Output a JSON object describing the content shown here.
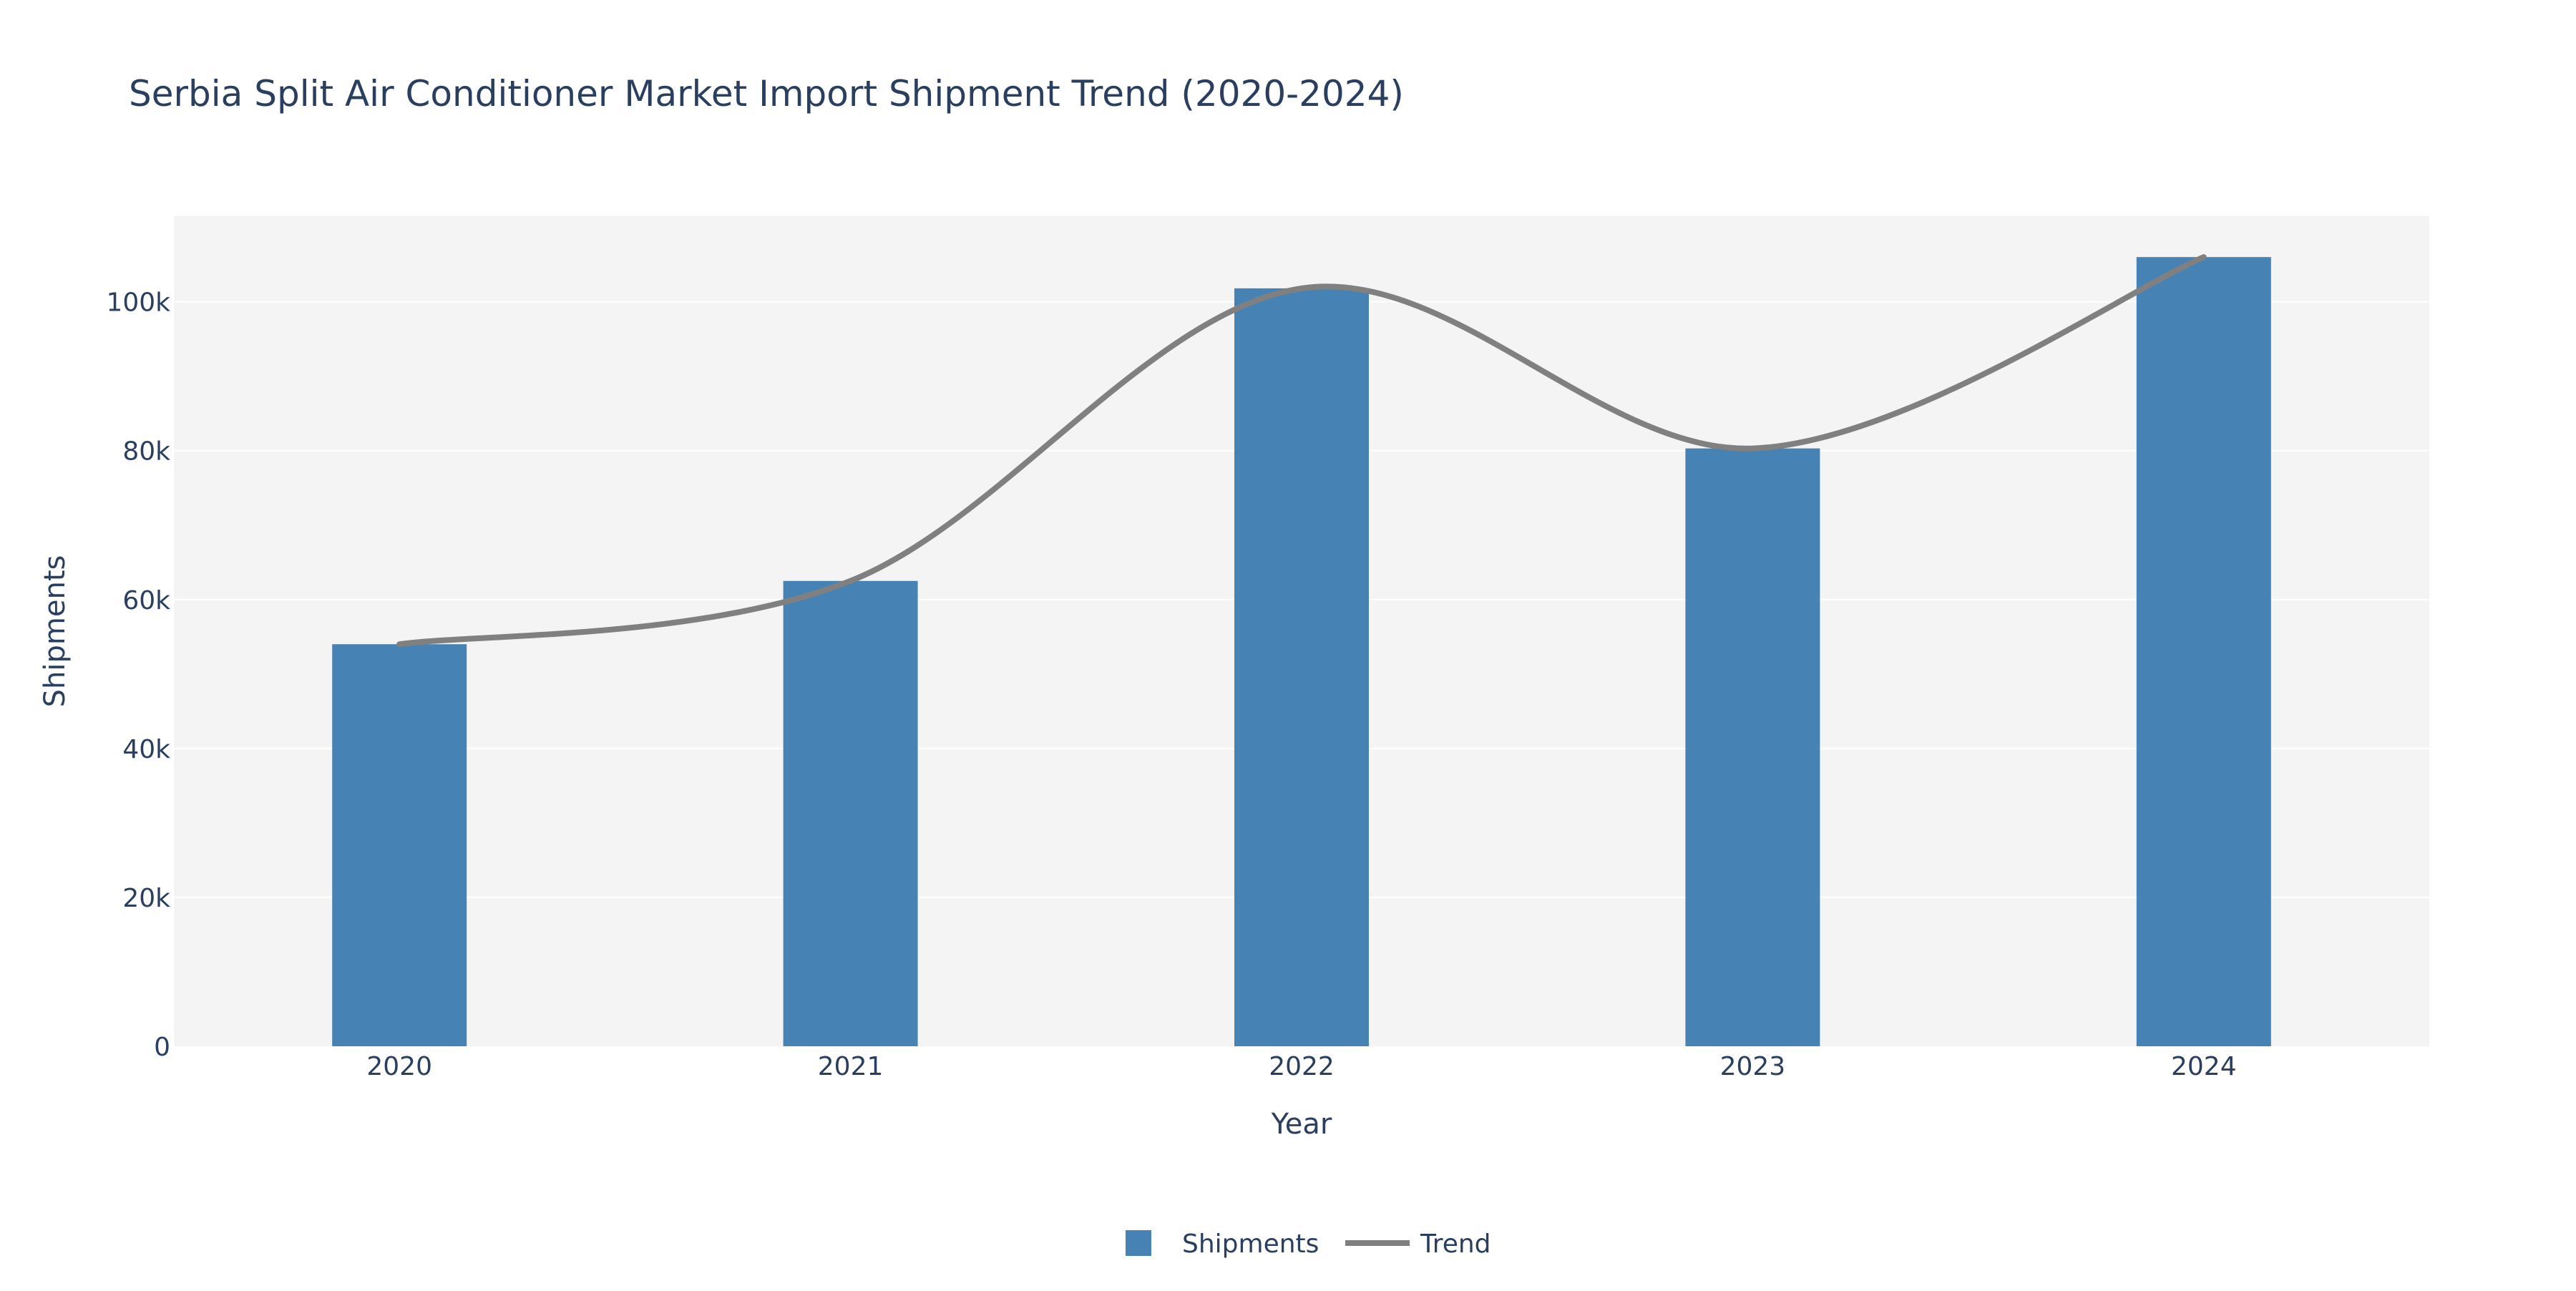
{
  "chart_data": {
    "type": "bar",
    "title": "Serbia Split Air Conditioner Market Import Shipment Trend (2020-2024)",
    "xlabel": "Year",
    "ylabel": "Shipments",
    "categories": [
      "2020",
      "2021",
      "2022",
      "2023",
      "2024"
    ],
    "series": [
      {
        "name": "Shipments",
        "type": "bar",
        "values": [
          54000,
          62500,
          101800,
          80300,
          106000
        ],
        "color": "#4682B4"
      },
      {
        "name": "Trend",
        "type": "line",
        "shape": "spline",
        "values": [
          54000,
          62500,
          101800,
          80300,
          106000
        ],
        "color": "#808080"
      }
    ],
    "ylim": [
      0,
      111500
    ],
    "yticks": [
      0,
      20000,
      40000,
      60000,
      80000,
      100000
    ],
    "ytick_labels": [
      "0",
      "20k",
      "40k",
      "60k",
      "80k",
      "100k"
    ],
    "grid": true,
    "legend_position": "bottom-center",
    "colors": {
      "plot_background": "#F4F4F4",
      "gridline": "#FFFFFF",
      "text": "#2A3F5F"
    }
  }
}
